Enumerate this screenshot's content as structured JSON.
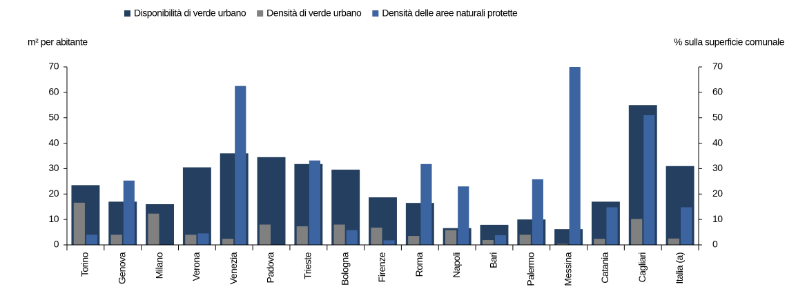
{
  "chart_data": {
    "type": "bar",
    "y_label": "m² per abitante",
    "y2_label": "% sulla superficie comunale",
    "categories": [
      "Torino",
      "Genova",
      "Milano",
      "Verona",
      "Venezia",
      "Padova",
      "Trieste",
      "Bologna",
      "Firenze",
      "Roma",
      "Napoli",
      "Bari",
      "Palermo",
      "Messina",
      "Catania",
      "Cagliari",
      "Italia (a)"
    ],
    "series": [
      {
        "name": "Disponibilità di verde urbano",
        "color": "#243f60",
        "values": [
          23.5,
          17,
          16,
          30.5,
          36,
          34.5,
          31.8,
          29.6,
          18.7,
          16.5,
          6.6,
          7.9,
          10,
          6.2,
          17,
          55,
          31
        ]
      },
      {
        "name": "Densità di verde urbano",
        "color": "#808080",
        "values": [
          16.6,
          4,
          12.3,
          4,
          2.4,
          8,
          7.3,
          8,
          6.8,
          3.5,
          5.8,
          1.9,
          4,
          0.4,
          2.4,
          10.2,
          2.5
        ]
      },
      {
        "name": "Densità delle aree naturali protette",
        "color": "#3c64a0",
        "axis": "y2",
        "values": [
          4,
          25.3,
          0,
          4.5,
          62.5,
          0,
          33.2,
          5.8,
          1.8,
          31.8,
          23,
          3.8,
          25.8,
          70,
          14.8,
          51,
          14.8
        ]
      }
    ],
    "ylim": [
      0,
      70
    ],
    "yticks": [
      0,
      10,
      20,
      30,
      40,
      50,
      60,
      70
    ],
    "y2lim": [
      0,
      70
    ],
    "y2ticks": [
      0,
      10,
      20,
      30,
      40,
      50,
      60,
      70
    ],
    "legend": "top"
  }
}
